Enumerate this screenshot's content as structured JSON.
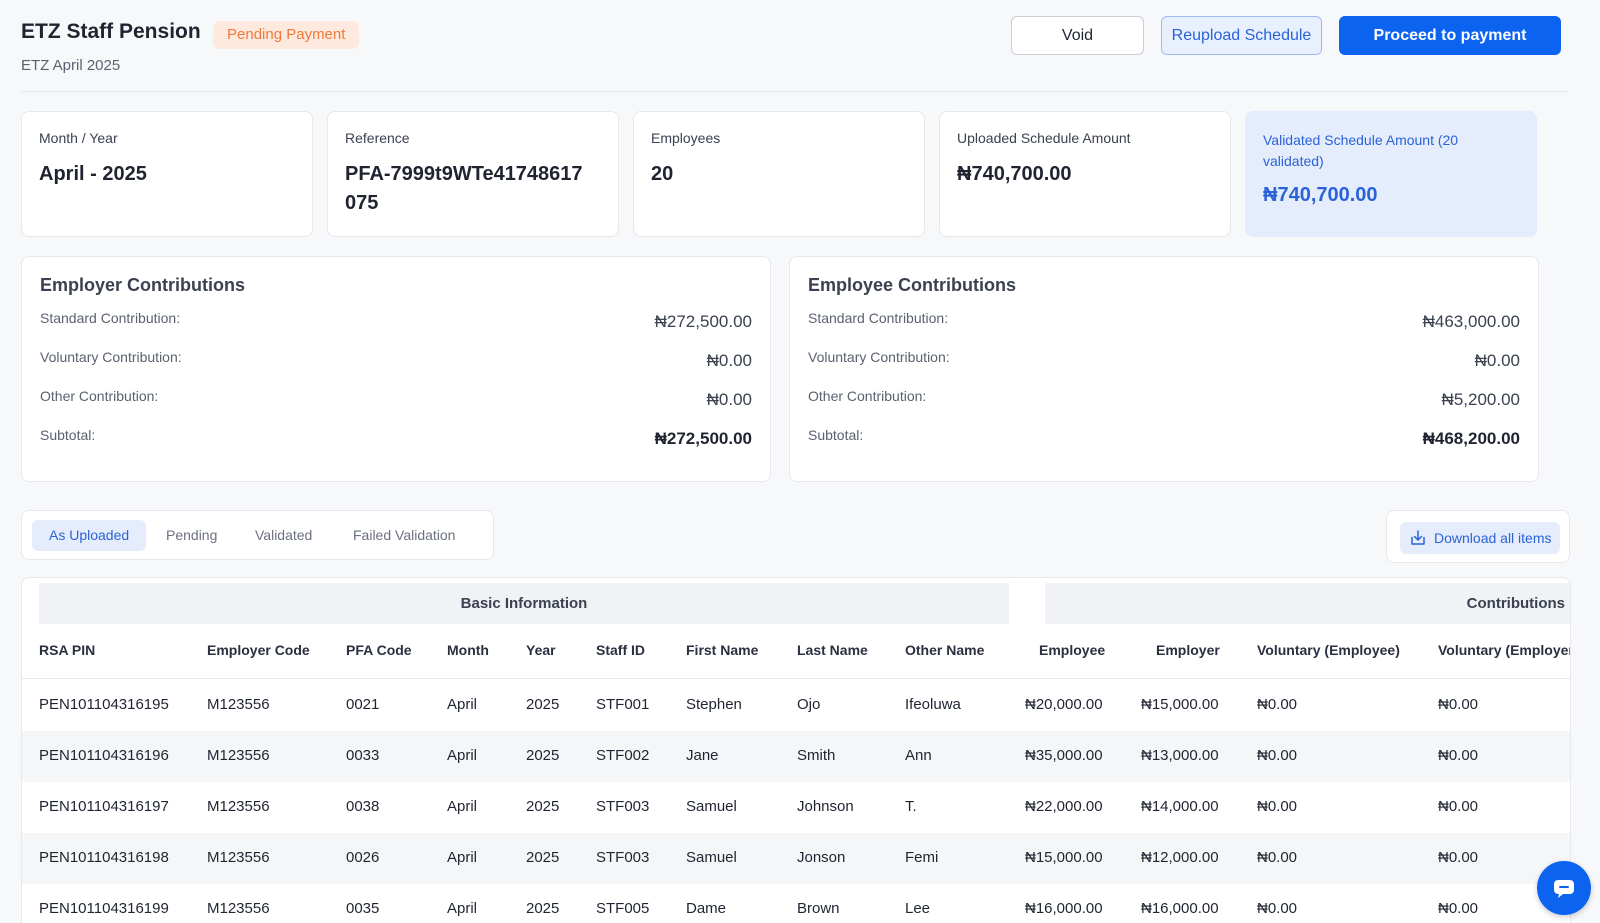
{
  "header": {
    "title": "ETZ Staff Pension",
    "status": "Pending Payment",
    "subtitle": "ETZ April 2025",
    "void_label": "Void",
    "reupload_label": "Reupload Schedule",
    "proceed_label": "Proceed to payment"
  },
  "stats": [
    {
      "label": "Month / Year",
      "value": "April - 2025"
    },
    {
      "label": "Reference",
      "value": "PFA-7999t9WTe41748617075"
    },
    {
      "label": "Employees",
      "value": "20"
    },
    {
      "label": "Uploaded Schedule Amount",
      "value": "₦740,700.00"
    },
    {
      "label": "Validated Schedule Amount (20 validated)",
      "value": "₦740,700.00"
    }
  ],
  "employer": {
    "title": "Employer Contributions",
    "rows": [
      {
        "label": "Standard Contribution:",
        "value": "₦272,500.00"
      },
      {
        "label": "Voluntary Contribution:",
        "value": "₦0.00"
      },
      {
        "label": "Other Contribution:",
        "value": "₦0.00"
      },
      {
        "label": "Subtotal:",
        "value": "₦272,500.00"
      }
    ]
  },
  "employee": {
    "title": "Employee Contributions",
    "rows": [
      {
        "label": "Standard Contribution:",
        "value": "₦463,000.00"
      },
      {
        "label": "Voluntary Contribution:",
        "value": "₦0.00"
      },
      {
        "label": "Other Contribution:",
        "value": "₦5,200.00"
      },
      {
        "label": "Subtotal:",
        "value": "₦468,200.00"
      }
    ]
  },
  "tabs": [
    "As Uploaded",
    "Pending",
    "Validated",
    "Failed Validation"
  ],
  "active_tab": "As Uploaded",
  "download_label": "Download all items",
  "table": {
    "group_basic": "Basic Information",
    "group_contrib": "Contributions",
    "columns": [
      "RSA PIN",
      "Employer Code",
      "PFA Code",
      "Month",
      "Year",
      "Staff ID",
      "First Name",
      "Last Name",
      "Other Name",
      "Employee",
      "Employer",
      "Voluntary (Employee)",
      "Voluntary (Employer)"
    ],
    "rows": [
      [
        "PEN101104316195",
        "M123556",
        "0021",
        "April",
        "2025",
        "STF001",
        "Stephen",
        "Ojo",
        "Ifeoluwa",
        "₦20,000.00",
        "₦15,000.00",
        "₦0.00",
        "₦0.00"
      ],
      [
        "PEN101104316196",
        "M123556",
        "0033",
        "April",
        "2025",
        "STF002",
        "Jane",
        "Smith",
        "Ann",
        "₦35,000.00",
        "₦13,000.00",
        "₦0.00",
        "₦0.00"
      ],
      [
        "PEN101104316197",
        "M123556",
        "0038",
        "April",
        "2025",
        "STF003",
        "Samuel",
        "Johnson",
        "T.",
        "₦22,000.00",
        "₦14,000.00",
        "₦0.00",
        "₦0.00"
      ],
      [
        "PEN101104316198",
        "M123556",
        "0026",
        "April",
        "2025",
        "STF003",
        "Samuel",
        "Jonson",
        "Femi",
        "₦15,000.00",
        "₦12,000.00",
        "₦0.00",
        "₦0.00"
      ],
      [
        "PEN101104316199",
        "M123556",
        "0035",
        "April",
        "2025",
        "STF005",
        "Dame",
        "Brown",
        "Lee",
        "₦16,000.00",
        "₦16,000.00",
        "₦0.00",
        "₦0.00"
      ]
    ]
  },
  "icons": {
    "download": "download-icon",
    "chat": "chat-icon"
  },
  "colors": {
    "primary": "#0b63f0",
    "accent_light": "#e5edfc",
    "badge_text": "#ef7a3d",
    "badge_bg": "#fde9dd"
  }
}
